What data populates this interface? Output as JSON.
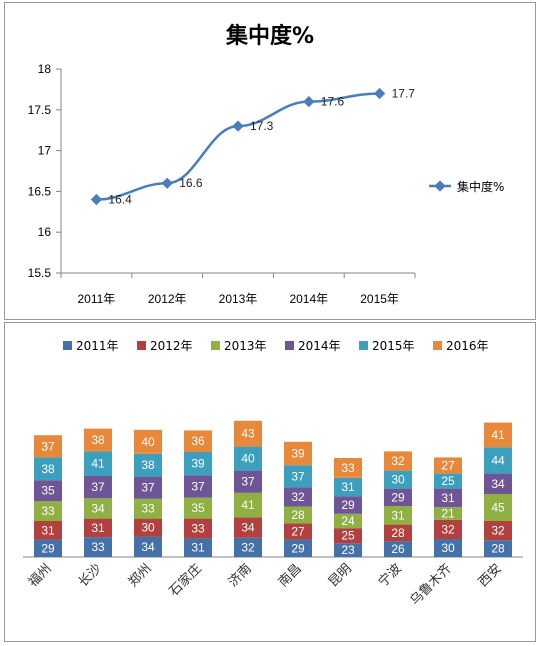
{
  "chart_data": [
    {
      "type": "line",
      "title": "集中度%",
      "x": [
        "2011年",
        "2012年",
        "2013年",
        "2014年",
        "2015年"
      ],
      "series": [
        {
          "name": "集中度%",
          "values": [
            16.4,
            16.6,
            17.3,
            17.6,
            17.7
          ]
        }
      ],
      "ylim": [
        15.5,
        18
      ],
      "yticks": [
        "15.5",
        "16",
        "16.5",
        "17",
        "17.5",
        "18"
      ],
      "grid": false,
      "legend": "right",
      "color": "#4a7ebb"
    },
    {
      "type": "bar",
      "stacked": true,
      "categories": [
        "福州",
        "长沙",
        "郑州",
        "石家庄",
        "济南",
        "南昌",
        "昆明",
        "宁波",
        "乌鲁木齐",
        "西安"
      ],
      "series": [
        {
          "name": "2011年",
          "color": "#4472a8",
          "values": [
            29,
            33,
            34,
            31,
            32,
            29,
            23,
            26,
            30,
            28
          ]
        },
        {
          "name": "2012年",
          "color": "#b2403e",
          "values": [
            31,
            31,
            30,
            33,
            34,
            27,
            25,
            28,
            32,
            32
          ]
        },
        {
          "name": "2013年",
          "color": "#8fb042",
          "values": [
            33,
            34,
            33,
            35,
            41,
            28,
            24,
            31,
            21,
            45
          ]
        },
        {
          "name": "2014年",
          "color": "#6f5595",
          "values": [
            35,
            37,
            37,
            37,
            37,
            32,
            29,
            29,
            31,
            34
          ]
        },
        {
          "name": "2015年",
          "color": "#3b9fbd",
          "values": [
            38,
            41,
            38,
            39,
            40,
            37,
            31,
            30,
            25,
            44
          ]
        },
        {
          "name": "2016年",
          "color": "#e8883a",
          "values": [
            37,
            38,
            40,
            36,
            43,
            39,
            33,
            32,
            27,
            41
          ]
        }
      ],
      "legend": "top",
      "grid": false
    }
  ]
}
